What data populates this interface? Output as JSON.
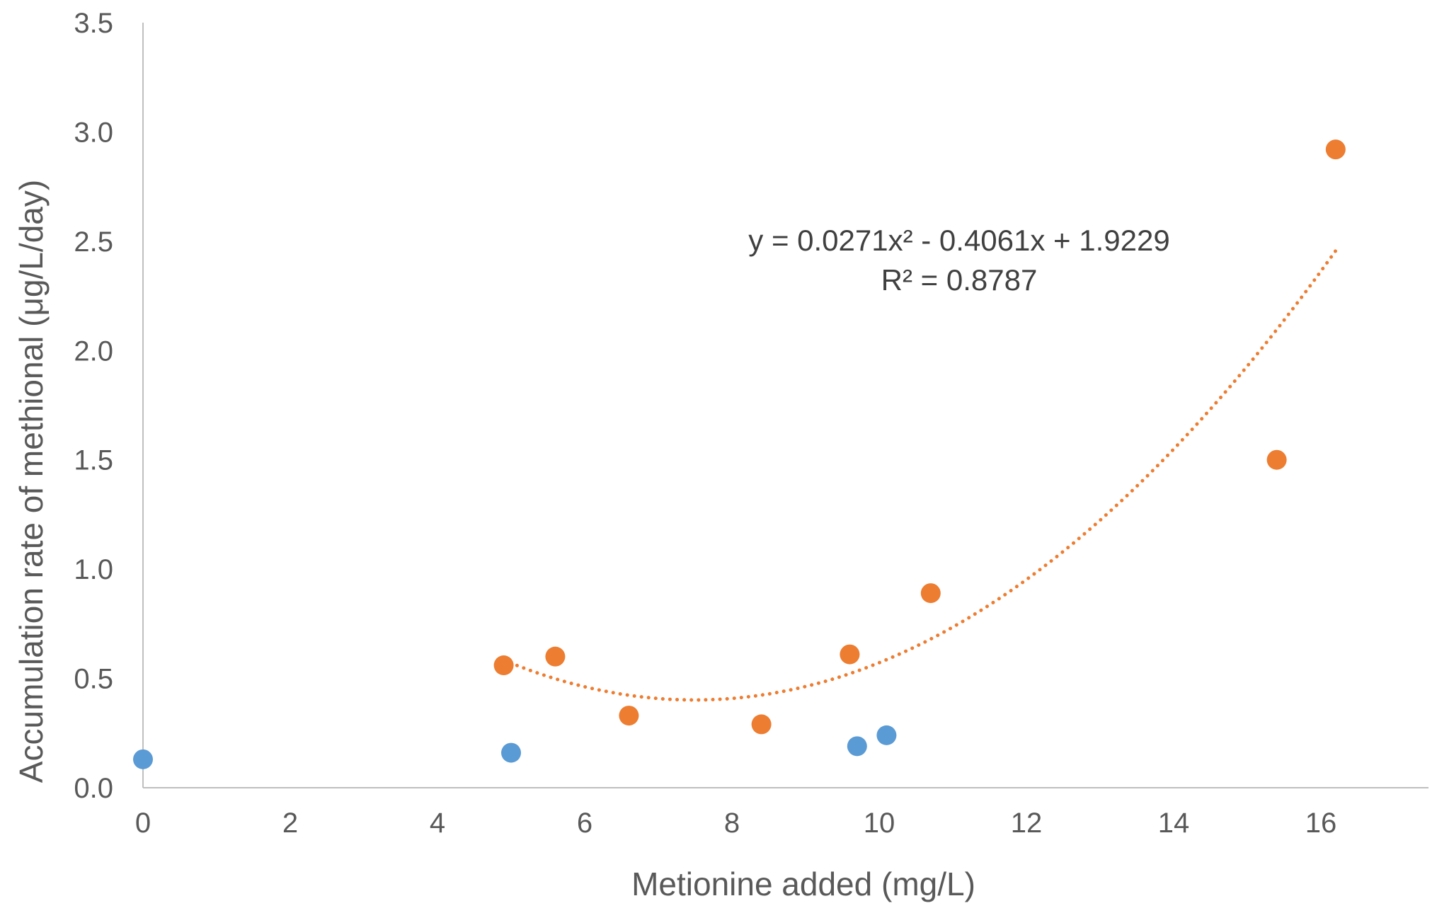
{
  "chart_data": {
    "type": "scatter",
    "title": "",
    "xlabel": "Metionine added (mg/L)",
    "ylabel": "Accumulation rate of methional (μg/L/day)",
    "xlim": [
      0,
      17.5
    ],
    "ylim": [
      0,
      3.5
    ],
    "x_ticks": [
      0,
      2,
      4,
      6,
      8,
      10,
      12,
      14,
      16
    ],
    "y_ticks": [
      0,
      0.5,
      1,
      1.5,
      2,
      2.5,
      3,
      3.5
    ],
    "x_tick_labels": [
      "0",
      "2",
      "4",
      "6",
      "8",
      "10",
      "12",
      "14",
      "16"
    ],
    "y_tick_labels": [
      "0.0",
      "0.5",
      "1.0",
      "1.5",
      "2.0",
      "2.5",
      "3.0",
      "3.5"
    ],
    "grid": false,
    "legend": "none",
    "series": [
      {
        "color": "#5B9BD5",
        "x": [
          0,
          5.0,
          9.7,
          10.1
        ],
        "y": [
          0.13,
          0.16,
          0.19,
          0.24
        ]
      },
      {
        "color": "#ED7D31",
        "x": [
          4.9,
          5.6,
          6.6,
          8.4,
          9.6,
          10.7,
          15.4,
          16.2
        ],
        "y": [
          0.56,
          0.6,
          0.33,
          0.29,
          0.61,
          0.89,
          1.5,
          2.92
        ]
      }
    ],
    "trendline": {
      "type": "polynomial",
      "order": 2,
      "coefficients": [
        0.0271,
        -0.4061,
        1.9229
      ],
      "x_range": [
        4.9,
        16.2
      ],
      "color": "#ED7D31",
      "style": "dotted",
      "equation_label": "y = 0.0271x² - 0.4061x + 1.9229",
      "r2_label": "R² = 0.8787"
    }
  }
}
